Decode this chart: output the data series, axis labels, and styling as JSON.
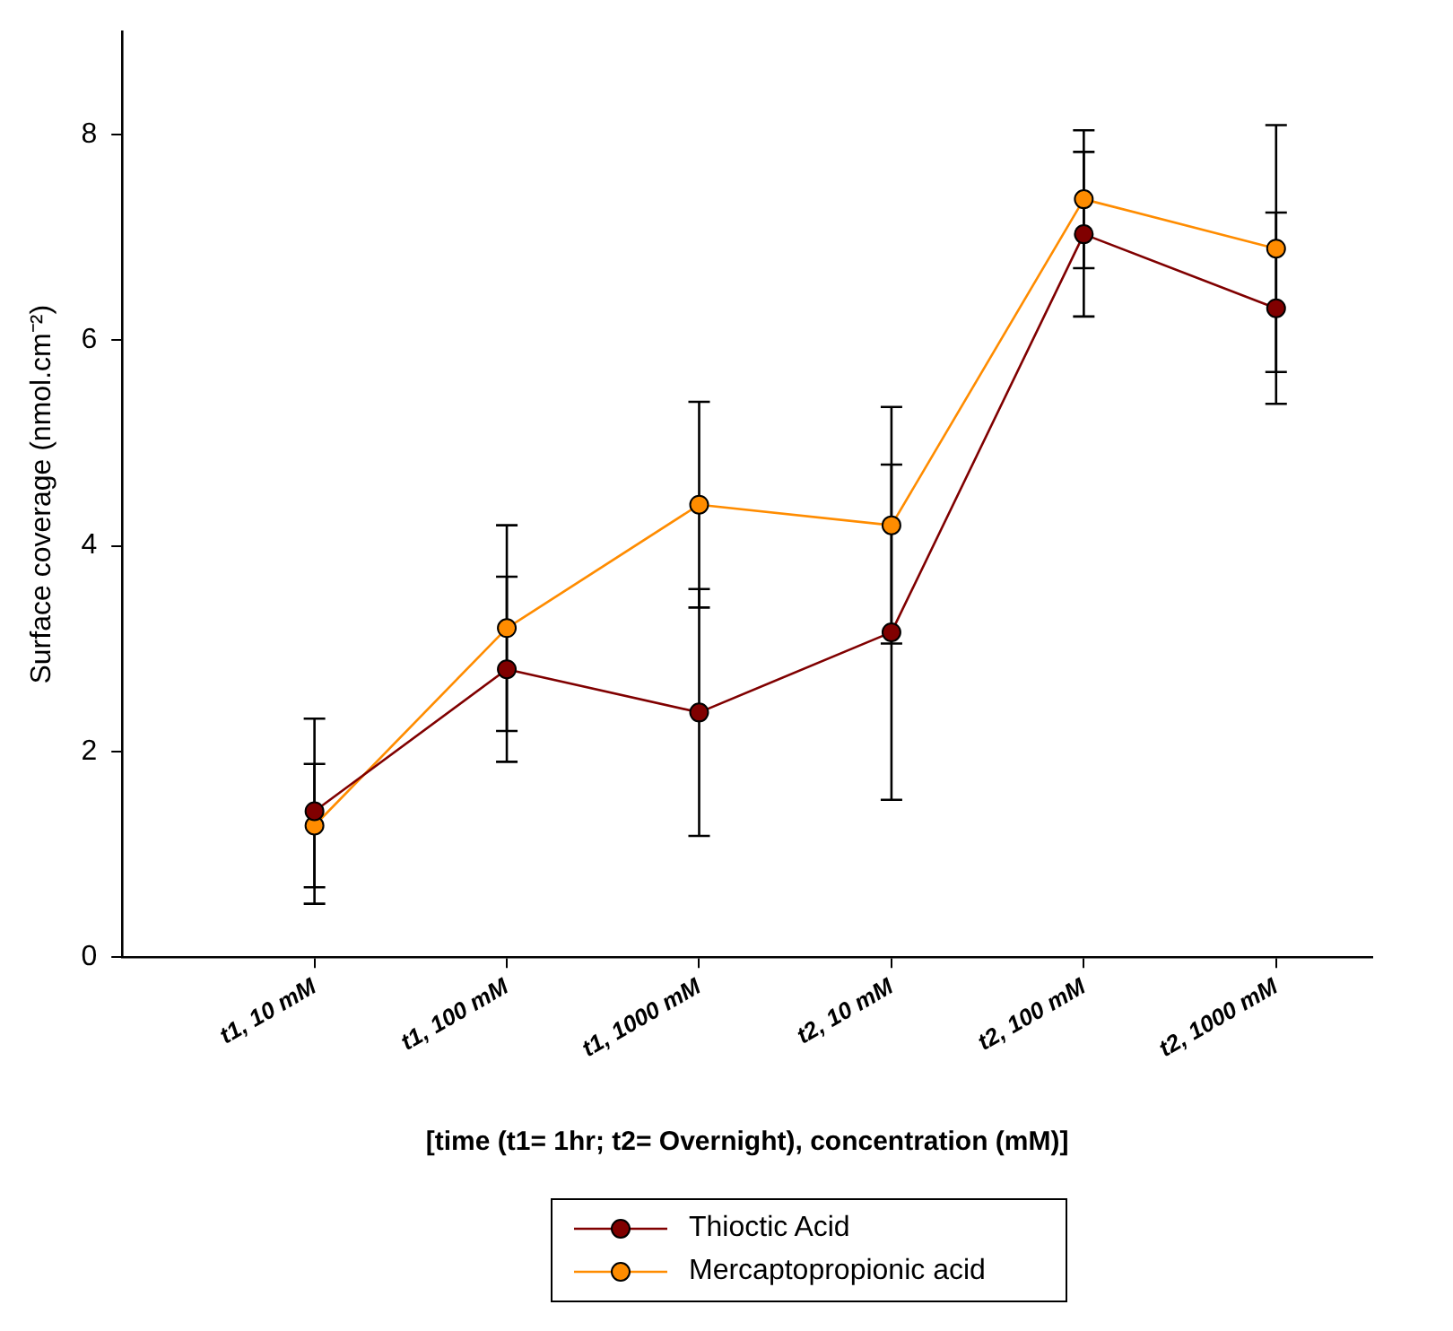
{
  "chart_data": {
    "type": "line",
    "xlabel": "[time (t1= 1hr; t2= Overnight), concentration (mM)]",
    "ylabel": "Surface coverage (nmol.cm⁻²)",
    "categories": [
      "t1, 10 mM",
      "t1, 100 mM",
      "t1, 1000 mM",
      "t2, 10 mM",
      "t2, 100 mM",
      "t2, 1000 mM"
    ],
    "series": [
      {
        "name": "Thioctic Acid",
        "color": "#800000",
        "values": [
          1.42,
          2.8,
          2.38,
          3.16,
          7.03,
          6.31
        ],
        "errors": [
          0.9,
          0.9,
          1.2,
          1.63,
          0.8,
          0.93
        ]
      },
      {
        "name": "Mercaptopropionic acid",
        "color": "#ff8c00",
        "values": [
          1.28,
          3.2,
          4.4,
          4.2,
          7.37,
          6.89
        ],
        "errors": [
          0.6,
          1.0,
          1.0,
          1.15,
          0.67,
          1.2
        ]
      }
    ],
    "ylim": [
      0,
      9
    ],
    "yticks": [
      0,
      2,
      4,
      6,
      8
    ],
    "grid": false,
    "legend": "bottom",
    "marker": "circle",
    "line_style": "solid"
  }
}
